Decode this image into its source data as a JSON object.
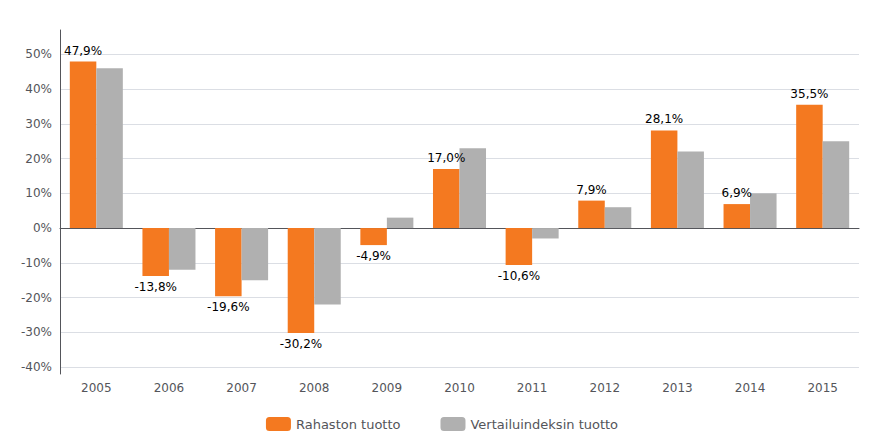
{
  "chart_data": {
    "type": "bar",
    "categories": [
      "2005",
      "2006",
      "2007",
      "2008",
      "2009",
      "2010",
      "2011",
      "2012",
      "2013",
      "2014",
      "2015"
    ],
    "series": [
      {
        "name": "Rahaston tuotto",
        "color": "#F47920",
        "values": [
          47.9,
          -13.8,
          -19.6,
          -30.2,
          -4.9,
          17.0,
          -10.6,
          7.9,
          28.1,
          6.9,
          35.5
        ],
        "value_labels": [
          "47,9%",
          "-13,8%",
          "-19,6%",
          "-30,2%",
          "-4,9%",
          "17,0%",
          "-10,6%",
          "7,9%",
          "28,1%",
          "6,9%",
          "35,5%"
        ],
        "data_labels": true
      },
      {
        "name": "Vertailuindeksin tuotto",
        "color": "#B0B0B0",
        "values": [
          46.0,
          -12.0,
          -15.0,
          -22.0,
          3.0,
          23.0,
          -3.0,
          6.0,
          22.0,
          10.0,
          25.0
        ]
      }
    ],
    "ylim": [
      -42,
      57
    ],
    "yticks": [
      {
        "value": -40,
        "label": "-40%"
      },
      {
        "value": -30,
        "label": "-30%"
      },
      {
        "value": -20,
        "label": "-20%"
      },
      {
        "value": -10,
        "label": "-10%"
      },
      {
        "value": 0,
        "label": "0%"
      },
      {
        "value": 10,
        "label": "10%"
      },
      {
        "value": 20,
        "label": "20%"
      },
      {
        "value": 30,
        "label": "30%"
      },
      {
        "value": 40,
        "label": "40%"
      },
      {
        "value": 50,
        "label": "50%"
      }
    ],
    "grid": true,
    "legend": "bottom"
  }
}
